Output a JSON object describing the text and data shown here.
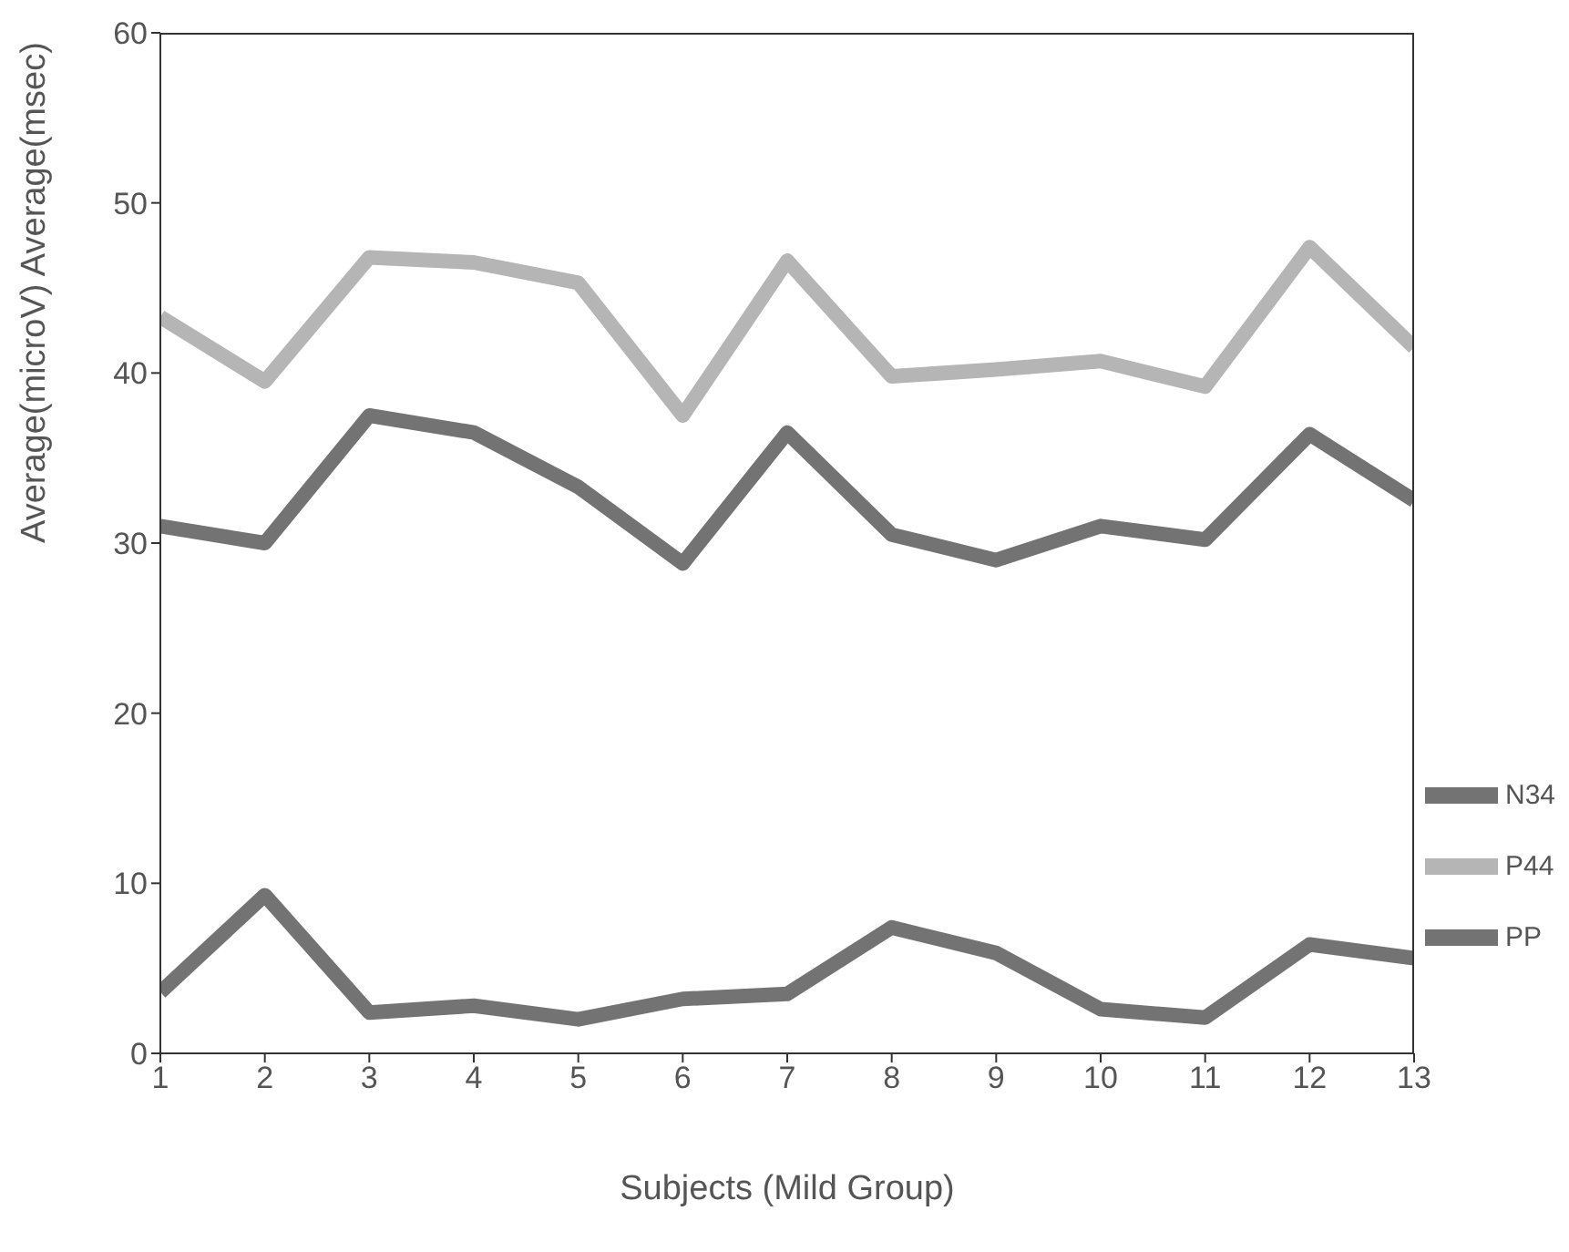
{
  "chart_data": {
    "type": "line",
    "xlabel": "Subjects (Mild Group)",
    "ylabel": "Average(microV)      Average(msec)",
    "x": [
      1,
      2,
      3,
      4,
      5,
      6,
      7,
      8,
      9,
      10,
      11,
      12,
      13
    ],
    "xlim": [
      1,
      13
    ],
    "xticks": [
      1,
      2,
      3,
      4,
      5,
      6,
      7,
      8,
      9,
      10,
      11,
      12,
      13
    ],
    "ylim": [
      0,
      60
    ],
    "yticks": [
      0,
      10,
      20,
      30,
      40,
      50,
      60
    ],
    "grid": false,
    "legend": "right",
    "marker": "none",
    "line_style": "solid",
    "series": [
      {
        "name": "N34",
        "color": "#737373",
        "values": [
          31,
          30,
          37.5,
          36.5,
          33.3,
          28.8,
          36.5,
          30.5,
          29,
          31,
          30.2,
          36.4,
          32.5
        ]
      },
      {
        "name": "P44",
        "color": "#b5b5b5",
        "values": [
          43.3,
          39.5,
          46.8,
          46.5,
          45.3,
          37.5,
          46.6,
          39.8,
          40.2,
          40.7,
          39.2,
          47.4,
          41.5
        ]
      },
      {
        "name": "PP",
        "color": "#737373",
        "values": [
          3.6,
          9.3,
          2.4,
          2.8,
          2,
          3.2,
          3.5,
          7.4,
          5.9,
          2.6,
          2.1,
          6.4,
          5.6
        ]
      }
    ]
  }
}
